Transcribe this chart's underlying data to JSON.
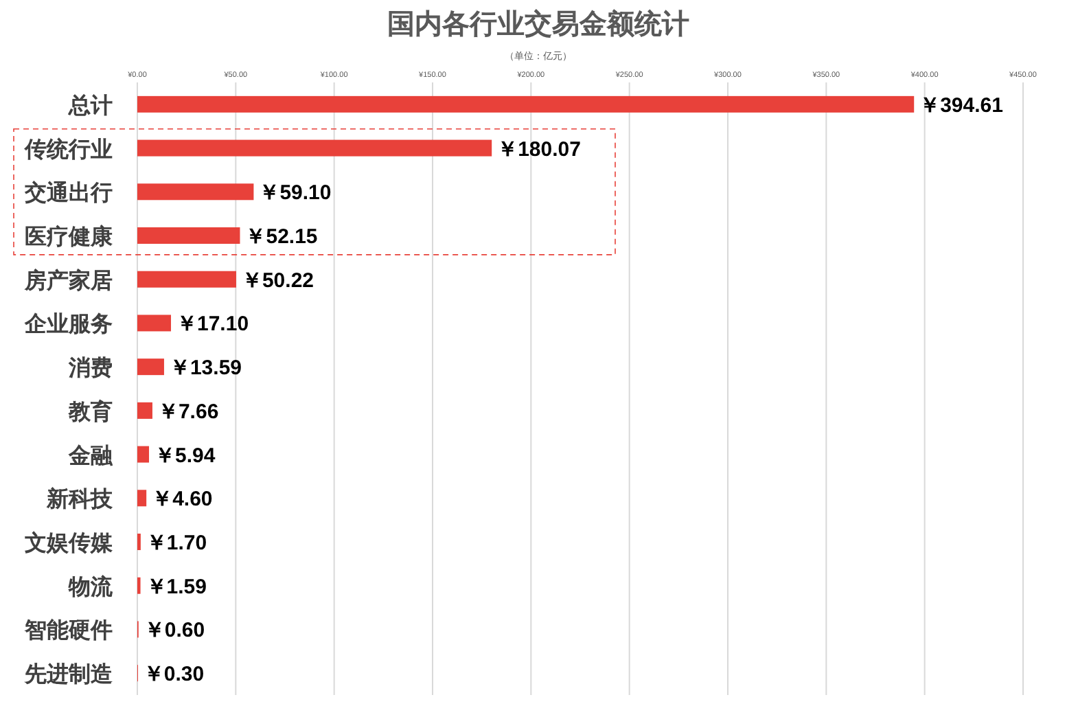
{
  "chart_data": {
    "type": "bar",
    "orientation": "horizontal",
    "title": "国内各行业交易金额统计",
    "subtitle": "（单位：亿元）",
    "categories": [
      "总计",
      "传统行业",
      "交通出行",
      "医疗健康",
      "房产家居",
      "企业服务",
      "消费",
      "教育",
      "金融",
      "新科技",
      "文娱传媒",
      "物流",
      "智能硬件",
      "先进制造"
    ],
    "values": [
      394.61,
      180.07,
      59.1,
      52.15,
      50.22,
      17.1,
      13.59,
      7.66,
      5.94,
      4.6,
      1.7,
      1.59,
      0.6,
      0.3
    ],
    "value_labels": [
      "￥394.61",
      "￥180.07",
      "￥59.10",
      "￥52.15",
      "￥50.22",
      "￥17.10",
      "￥13.59",
      "￥7.66",
      "￥5.94",
      "￥4.60",
      "￥1.70",
      "￥1.59",
      "￥0.60",
      "￥0.30"
    ],
    "color": "#e8413a",
    "xlim": [
      0,
      450
    ],
    "xticks": [
      {
        "value": 0,
        "label": "¥0.00"
      },
      {
        "value": 50,
        "label": "¥50.00"
      },
      {
        "value": 100,
        "label": "¥100.00"
      },
      {
        "value": 150,
        "label": "¥150.00"
      },
      {
        "value": 200,
        "label": "¥200.00"
      },
      {
        "value": 250,
        "label": "¥250.00"
      },
      {
        "value": 300,
        "label": "¥300.00"
      },
      {
        "value": 350,
        "label": "¥350.00"
      },
      {
        "value": 400,
        "label": "¥400.00"
      },
      {
        "value": 450,
        "label": "¥450.00"
      }
    ],
    "grid": "x"
  }
}
